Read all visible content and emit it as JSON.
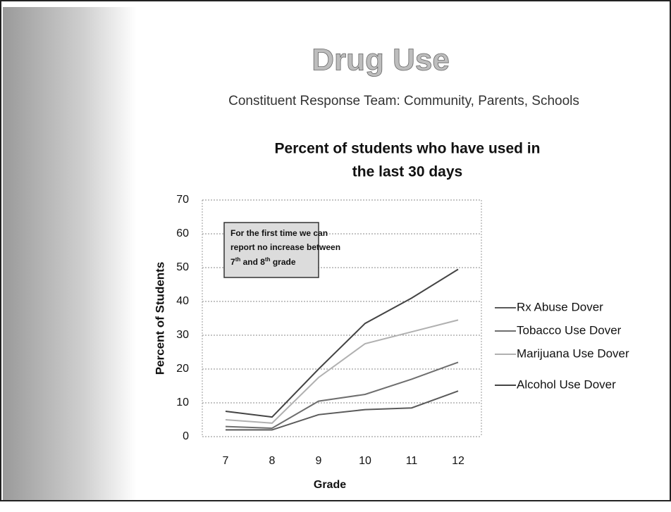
{
  "header": {
    "title": "Drug Use",
    "subtitle": "Constituent Response Team: Community, Parents, Schools"
  },
  "chart_data": {
    "type": "line",
    "title": [
      "Percent of students who have used in",
      "the last 30 days"
    ],
    "x_label": "Grade",
    "y_label": "Percent of Students",
    "categories": [
      "7",
      "8",
      "9",
      "10",
      "11",
      "12"
    ],
    "series": [
      {
        "name": "Rx Abuse Dover",
        "color": "#5a5a5a",
        "values": [
          2,
          2,
          6.5,
          8,
          8.5,
          13.5
        ]
      },
      {
        "name": "Tobacco Use Dover",
        "color": "#6e6e6e",
        "values": [
          3,
          2.5,
          10.5,
          12.5,
          17,
          22
        ]
      },
      {
        "name": "Marijuana Use Dover",
        "color": "#b0b0b0",
        "values": [
          5,
          4,
          17.5,
          27.5,
          31,
          34.5
        ]
      },
      {
        "name": "Alcohol Use Dover",
        "color": "#444444",
        "values": [
          7.5,
          5.8,
          20,
          33.5,
          41,
          49.5
        ]
      }
    ],
    "ylim": [
      0,
      70
    ],
    "yticks": [
      0,
      10,
      20,
      30,
      40,
      50,
      60,
      70
    ],
    "grid": true,
    "annotation": {
      "lines": [
        "For the first time we can",
        "report no increase between"
      ],
      "last_line": [
        "7",
        "th",
        " and 8",
        "th",
        " grade"
      ]
    }
  }
}
